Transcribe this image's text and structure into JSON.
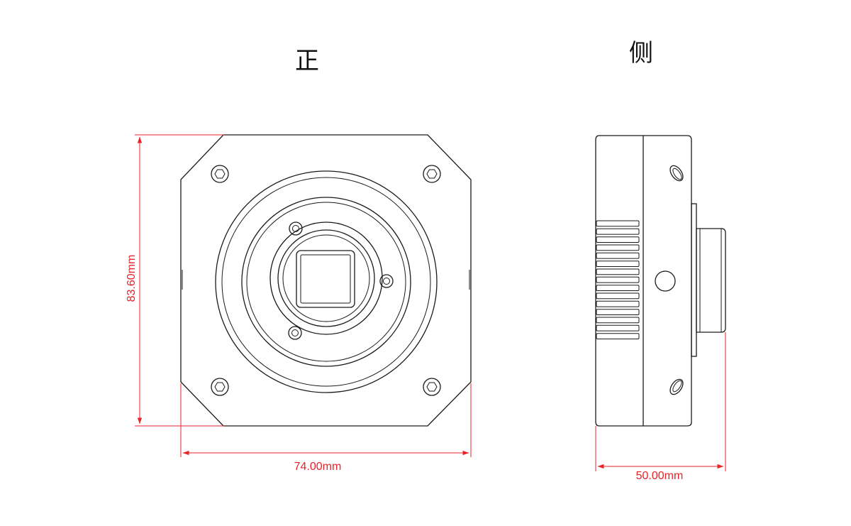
{
  "views": {
    "front_label": "正",
    "side_label": "侧"
  },
  "dimensions": {
    "height": "83.60mm",
    "front_width": "74.00mm",
    "side_width": "50.00mm"
  },
  "colors": {
    "outline": "#1a1a1a",
    "dimension": "#e8232a",
    "background": "#ffffff"
  }
}
